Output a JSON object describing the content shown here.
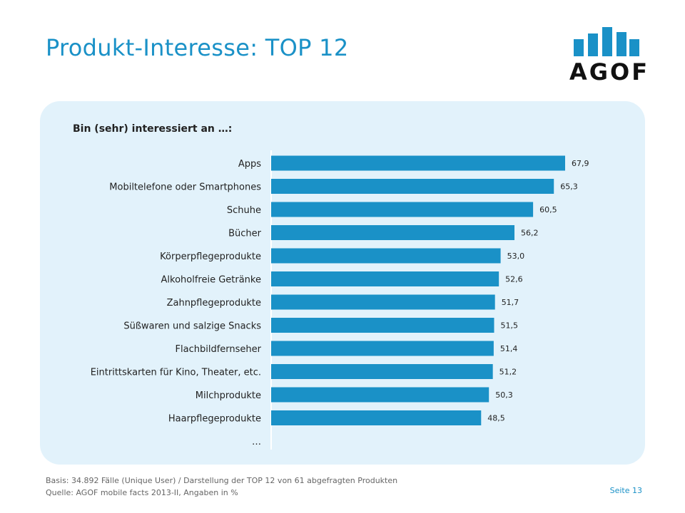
{
  "header": {
    "title": "Produkt-Interesse: TOP 12",
    "logo_text": "AGOF"
  },
  "colors": {
    "accent": "#1a91c7",
    "panel": "#e2f2fb",
    "bar": "#1a91c7"
  },
  "chart_data": {
    "type": "bar",
    "orientation": "horizontal",
    "subtitle": "Bin (sehr) interessiert an …:",
    "categories": [
      "Apps",
      "Mobiltelefone oder Smartphones",
      "Schuhe",
      "Bücher",
      "Körperpflegeprodukte",
      "Alkoholfreie Getränke",
      "Zahnpflegeprodukte",
      "Süßwaren und salzige Snacks",
      "Flachbildfernseher",
      "Eintrittskarten für Kino, Theater, etc.",
      "Milchprodukte",
      "Haarpflegeprodukte",
      "…"
    ],
    "values": [
      67.9,
      65.3,
      60.5,
      56.2,
      53.0,
      52.6,
      51.7,
      51.5,
      51.4,
      51.2,
      50.3,
      48.5,
      null
    ],
    "value_labels": [
      "67,9",
      "65,3",
      "60,5",
      "56,2",
      "53,0",
      "52,6",
      "51,7",
      "51,5",
      "51,4",
      "51,2",
      "50,3",
      "48,5",
      ""
    ],
    "xlim": [
      0,
      100
    ],
    "grid": false,
    "legend": "none"
  },
  "footer": {
    "basis": "Basis: 34.892 Fälle (Unique User) / Darstellung der TOP 12 von 61 abgefragten Produkten",
    "source": "Quelle: AGOF mobile facts 2013-II, Angaben in %",
    "page": "Seite  13"
  }
}
